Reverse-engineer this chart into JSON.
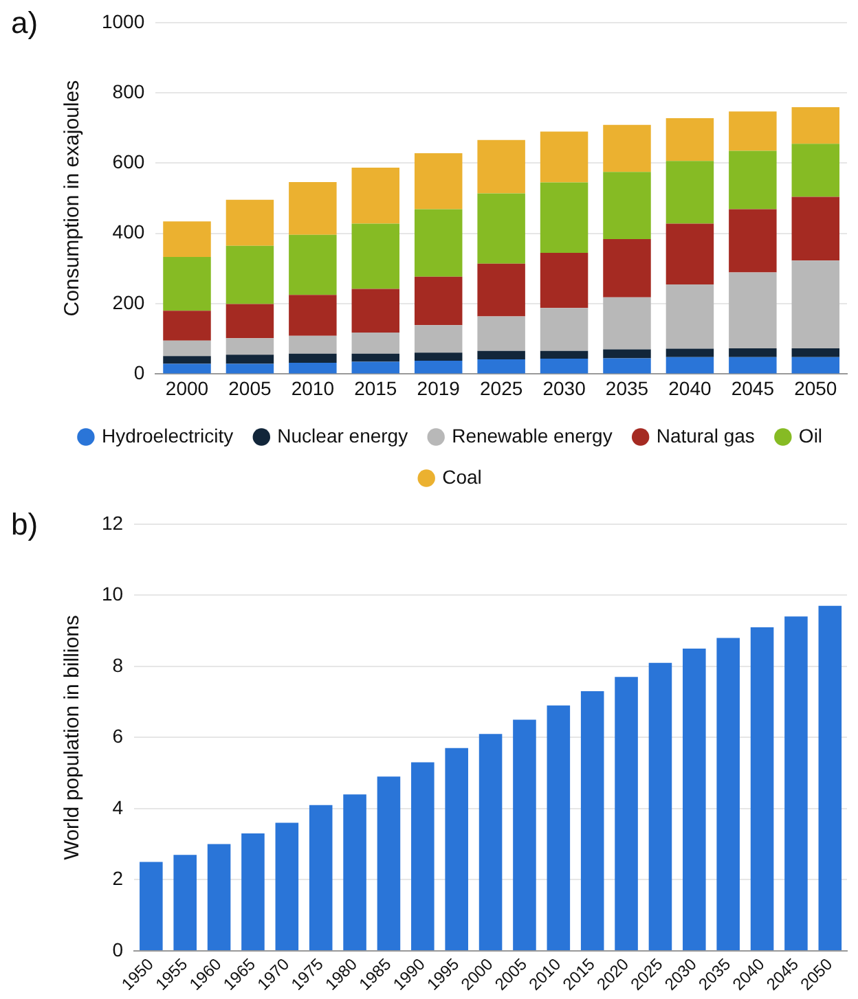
{
  "chart_data": [
    {
      "type": "bar",
      "annotations": [
        "a)"
      ],
      "ylabel": "Consumption in exajoules",
      "categories": [
        "2000",
        "2005",
        "2010",
        "2015",
        "2019",
        "2025",
        "2030",
        "2035",
        "2040",
        "2045",
        "2050"
      ],
      "stacked": true,
      "ylim": [
        0,
        1000
      ],
      "yticks": [
        0,
        200,
        400,
        600,
        800,
        1000
      ],
      "grid": "y",
      "legend": "bottom",
      "series": [
        {
          "name": "Hydroelectricity",
          "color": "#2a75d8",
          "values": [
            29,
            29,
            32,
            35,
            38,
            42,
            44,
            45,
            48,
            48,
            48
          ]
        },
        {
          "name": "Nuclear energy",
          "color": "#12263a",
          "values": [
            22,
            26,
            26,
            23,
            23,
            24,
            22,
            25,
            24,
            25,
            25
          ]
        },
        {
          "name": "Renewable energy",
          "color": "#b8b8b8",
          "values": [
            44,
            47,
            51,
            60,
            78,
            98,
            122,
            148,
            183,
            216,
            250
          ]
        },
        {
          "name": "Natural gas",
          "color": "#a52a22",
          "values": [
            85,
            97,
            116,
            124,
            138,
            150,
            157,
            166,
            173,
            180,
            181
          ]
        },
        {
          "name": "Oil",
          "color": "#86bb24",
          "values": [
            153,
            166,
            171,
            186,
            192,
            200,
            200,
            191,
            178,
            166,
            151
          ]
        },
        {
          "name": "Coal",
          "color": "#ebb130",
          "values": [
            101,
            131,
            150,
            159,
            159,
            152,
            145,
            134,
            122,
            112,
            104
          ]
        }
      ]
    },
    {
      "type": "bar",
      "annotations": [
        "b)"
      ],
      "ylabel": "World population in billions",
      "categories": [
        "1950",
        "1955",
        "1960",
        "1965",
        "1970",
        "1975",
        "1980",
        "1985",
        "1990",
        "1995",
        "2000",
        "2005",
        "2010",
        "2015",
        "2020",
        "2025",
        "2030",
        "2035",
        "2040",
        "2045",
        "2050"
      ],
      "color": "#2a75d8",
      "values": [
        2.5,
        2.7,
        3.0,
        3.3,
        3.6,
        4.1,
        4.4,
        4.9,
        5.3,
        5.7,
        6.1,
        6.5,
        6.9,
        7.3,
        7.7,
        8.1,
        8.5,
        8.8,
        9.1,
        9.4,
        9.7
      ],
      "ylim": [
        0,
        12
      ],
      "yticks": [
        0,
        2,
        4,
        6,
        8,
        10,
        12
      ],
      "grid": "y"
    }
  ]
}
